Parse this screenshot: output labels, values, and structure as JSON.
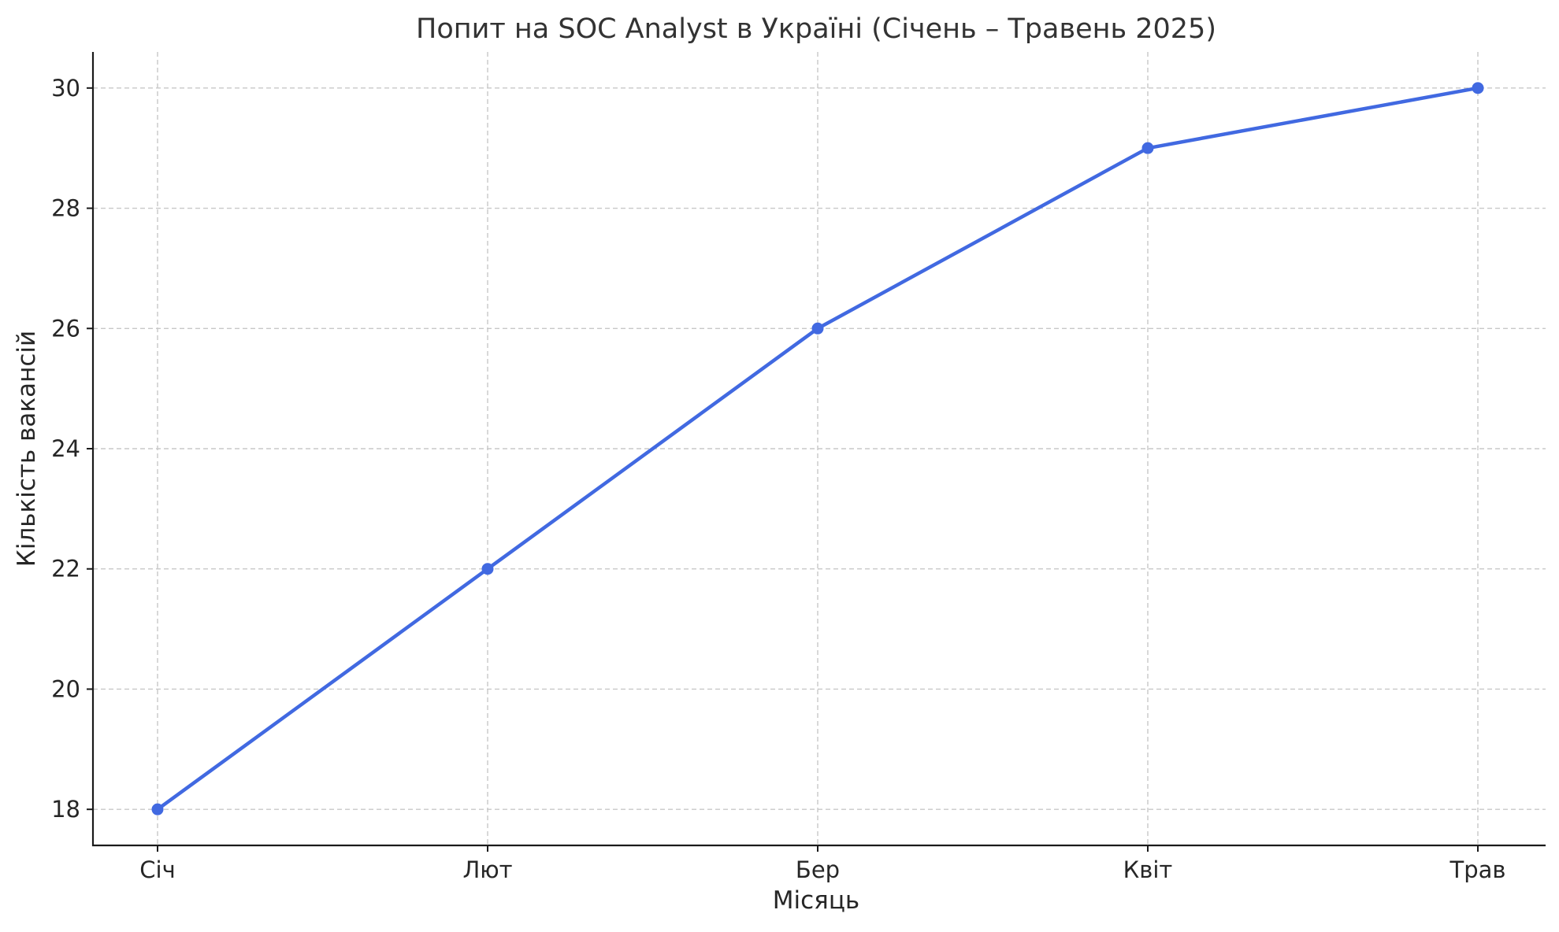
{
  "chart_data": {
    "type": "line",
    "title": "Попит на SOC Analyst в Україні (Січень – Травень 2025)",
    "xlabel": "Місяць",
    "ylabel": "Кількість вакансій",
    "categories": [
      "Січ",
      "Лют",
      "Бер",
      "Квіт",
      "Трав"
    ],
    "series": [
      {
        "values": [
          18,
          22,
          26,
          29,
          30
        ]
      }
    ],
    "ylim": [
      17.4,
      30.6
    ],
    "yticks": [
      18,
      20,
      22,
      24,
      26,
      28,
      30
    ],
    "grid": true,
    "legend": "none",
    "colors": {
      "line": "#4169e1",
      "grid": "#c8c8c8",
      "axis": "#1a1a1a"
    }
  }
}
